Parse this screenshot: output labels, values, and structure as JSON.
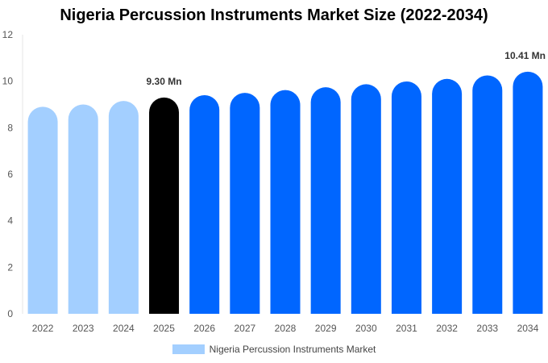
{
  "chart_data": {
    "type": "bar",
    "title": "Nigeria Percussion Instruments Market Size (2022-2034)",
    "categories": [
      "2022",
      "2023",
      "2024",
      "2025",
      "2026",
      "2027",
      "2028",
      "2029",
      "2030",
      "2031",
      "2032",
      "2033",
      "2034"
    ],
    "series": [
      {
        "name": "Nigeria Percussion Instruments Market",
        "values": [
          8.9,
          9.0,
          9.15,
          9.3,
          9.4,
          9.5,
          9.62,
          9.74,
          9.87,
          9.99,
          10.1,
          10.25,
          10.41
        ]
      }
    ],
    "data_labels": [
      {
        "category": "2025",
        "text": "9.30 Mn"
      },
      {
        "category": "2034",
        "text": "10.41 Mn"
      }
    ],
    "ylim": [
      0,
      12
    ],
    "yticks": [
      0,
      2,
      4,
      6,
      8,
      10,
      12
    ],
    "colors": {
      "historical": "#a3cfff",
      "base_year": "#000000",
      "forecast": "#0066ff",
      "legend_swatch": "#a3cfff"
    },
    "bar_color_groups": [
      "historical",
      "historical",
      "historical",
      "base_year",
      "forecast",
      "forecast",
      "forecast",
      "forecast",
      "forecast",
      "forecast",
      "forecast",
      "forecast",
      "forecast"
    ],
    "legend_position": "bottom"
  }
}
